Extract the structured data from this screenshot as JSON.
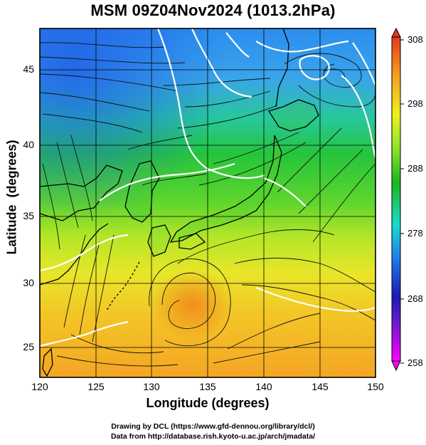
{
  "title": "MSM 09Z04Nov2024 (1013.2hPa)",
  "axes": {
    "xlabel": "Longitude (degrees)",
    "ylabel": "Latitude  (degrees)",
    "xticks": [
      "120",
      "125",
      "130",
      "135",
      "140",
      "145",
      "150"
    ],
    "yticks": [
      "25",
      "30",
      "35",
      "40",
      "45"
    ],
    "xrange": [
      120,
      150
    ],
    "yrange": [
      22.4,
      47.6
    ]
  },
  "colorbar": {
    "ticks": [
      "308",
      "298",
      "288",
      "278",
      "268",
      "258"
    ],
    "range": [
      258,
      308
    ],
    "colors": [
      "#ff00ff",
      "#1b1bb6",
      "#1f7fe6",
      "#18dcd0",
      "#1db51d",
      "#8ee62a",
      "#f0f020",
      "#f5a021",
      "#e33a1c"
    ]
  },
  "footer": {
    "line1": "Drawing by DCL (https://www.gfd-dennou.org/library/dcl/)",
    "line2": "Data from http://database.rish.kyoto-u.ac.jp/arch/jmadata/"
  }
}
